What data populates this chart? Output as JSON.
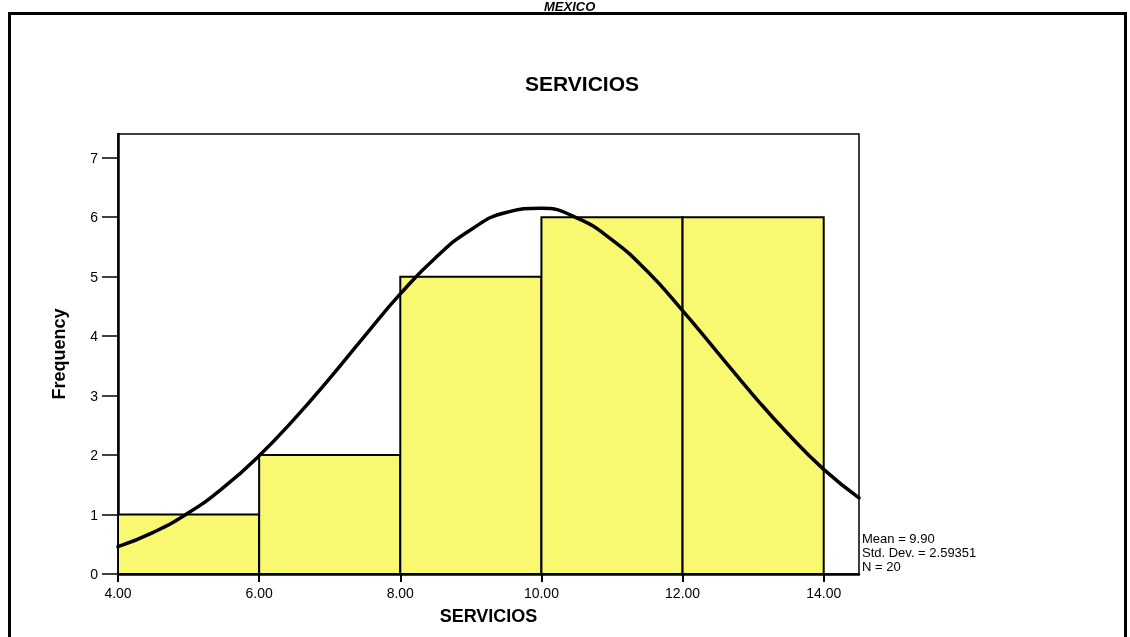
{
  "chart_data": {
    "type": "histogram",
    "title": "SERVICIOS",
    "xlabel": "SERVICIOS",
    "ylabel": "Frequency",
    "annotations": [
      "MEXICO",
      "Mean = 9.90",
      "Std. Dev. = 2.59351",
      "N = 20"
    ],
    "bins": [
      4,
      6,
      8,
      10,
      12,
      14
    ],
    "series": [
      {
        "color": "#f9f871",
        "values": [
          1,
          2,
          5,
          6,
          6
        ]
      },
      {
        "type": "line",
        "color": "#000000",
        "x": [
          4,
          4.5,
          5,
          5.5,
          6,
          6.5,
          7,
          7.5,
          8,
          8.5,
          9,
          9.5,
          10,
          10.5,
          11,
          11.5,
          12,
          12.5,
          13,
          13.5,
          14,
          14.5
        ],
        "values": [
          0.46,
          0.7,
          1.03,
          1.46,
          1.99,
          2.61,
          3.29,
          4.01,
          4.71,
          5.32,
          5.79,
          6.08,
          6.15,
          5.99,
          5.62,
          5.09,
          4.43,
          3.72,
          3.01,
          2.35,
          1.76,
          1.28
        ]
      }
    ],
    "xlim": [
      4,
      14.5
    ],
    "xticks": [
      {
        "value": 4,
        "label": "4.00"
      },
      {
        "value": 6,
        "label": "6.00"
      },
      {
        "value": 8,
        "label": "8.00"
      },
      {
        "value": 10,
        "label": "10.00"
      },
      {
        "value": 12,
        "label": "12.00"
      },
      {
        "value": 14,
        "label": "14.00"
      }
    ],
    "ylim": [
      0,
      7.4
    ],
    "yticks": [
      0,
      1,
      2,
      3,
      4,
      5,
      6,
      7
    ]
  }
}
